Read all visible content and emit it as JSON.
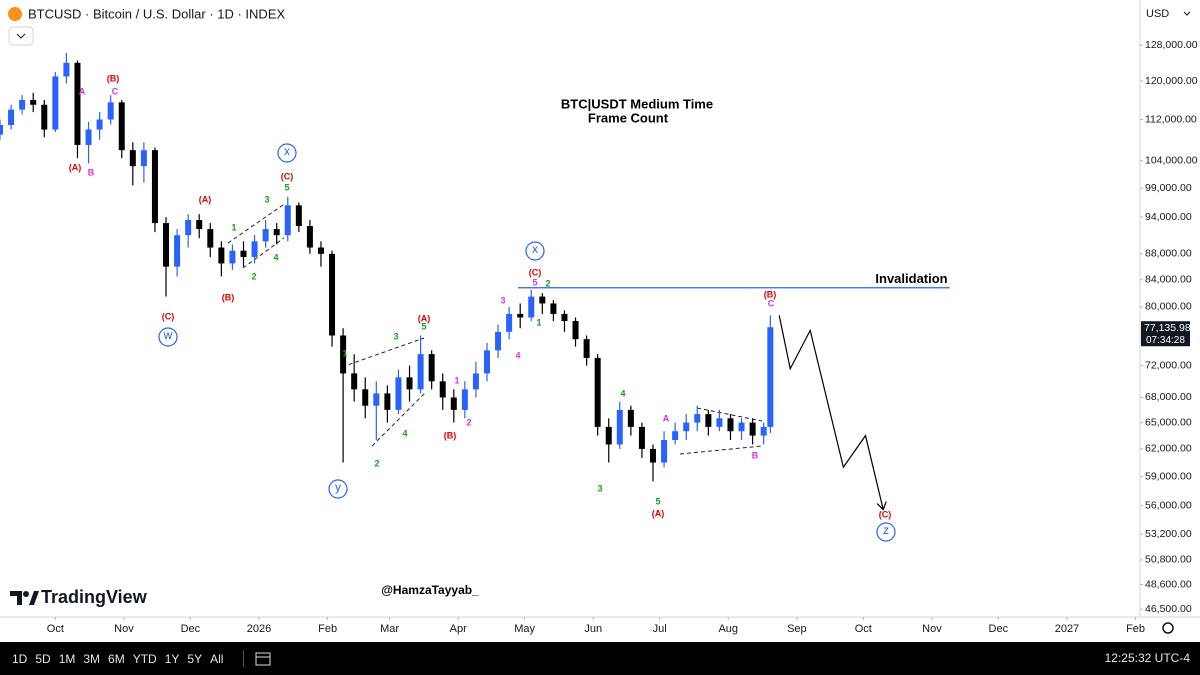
{
  "header": {
    "symbol": "BTCUSD · Bitcoin / U.S. Dollar · 1D · INDEX",
    "currency": "USD"
  },
  "branding": "TradingView",
  "toolbar": {
    "ranges": [
      "1D",
      "5D",
      "1M",
      "3M",
      "6M",
      "YTD",
      "1Y",
      "5Y",
      "All"
    ],
    "clock": "12:25:32 UTC-4"
  },
  "chart_data": {
    "type": "candlestick",
    "title": "BTC|USDT Medium Time",
    "subtitle": "Frame Count",
    "watermark": "@HamzaTayyab_",
    "log_scale": true,
    "grid": false,
    "up_color": "#2962ff",
    "down_color": "#000000",
    "x": [
      -25,
      -20,
      -15,
      -10,
      -5,
      0,
      5,
      10,
      15,
      20,
      25,
      30,
      35,
      40,
      45,
      50,
      55,
      60,
      65,
      70,
      75,
      80,
      85,
      90,
      95,
      100,
      105,
      110,
      115,
      120,
      125,
      130,
      135,
      140,
      145,
      150,
      155,
      160,
      165,
      170,
      175,
      180,
      185,
      190,
      195,
      200,
      205,
      210,
      215,
      220,
      225,
      230,
      235,
      240,
      245,
      250,
      255,
      260,
      265,
      270,
      275,
      280,
      285,
      290,
      295,
      300,
      305,
      310,
      315,
      320,
      323
    ],
    "open": [
      109000,
      110900,
      114000,
      116000,
      115000,
      110000,
      121000,
      124000,
      107000,
      110000,
      112000,
      115500,
      106000,
      103000,
      106000,
      93000,
      86000,
      91000,
      93500,
      92000,
      89000,
      86500,
      88500,
      87500,
      90000,
      92000,
      91000,
      96000,
      92500,
      89000,
      88000,
      76000,
      71000,
      69000,
      67000,
      68500,
      66500,
      70500,
      69000,
      73500,
      70000,
      68000,
      66500,
      69000,
      71000,
      74000,
      76500,
      79000,
      78500,
      81500,
      80500,
      79000,
      78000,
      75500,
      73000,
      64500,
      62500,
      66500,
      64500,
      62000,
      60500,
      63000,
      64000,
      65000,
      66000,
      64500,
      65500,
      64000,
      65000,
      63500,
      64500
    ],
    "high": [
      112000,
      115000,
      117000,
      117500,
      116000,
      122000,
      126200,
      124500,
      111500,
      113500,
      117000,
      116000,
      107500,
      107500,
      106500,
      94000,
      92000,
      94500,
      94500,
      93000,
      90000,
      89500,
      90000,
      91000,
      93500,
      93000,
      97500,
      96500,
      93500,
      90000,
      88500,
      77000,
      73500,
      70500,
      70000,
      69500,
      71500,
      72000,
      76000,
      74000,
      71000,
      69000,
      70000,
      72500,
      75000,
      77500,
      80000,
      80500,
      82500,
      82000,
      81000,
      79500,
      78500,
      76000,
      73500,
      65500,
      67500,
      67000,
      65000,
      62500,
      64000,
      65000,
      66000,
      67000,
      66500,
      66500,
      66000,
      65500,
      65500,
      65000,
      78800
    ],
    "low": [
      108000,
      110000,
      113000,
      113500,
      108500,
      109500,
      119500,
      104500,
      103500,
      108000,
      111000,
      104500,
      99500,
      100000,
      91500,
      81500,
      84500,
      89000,
      90500,
      87500,
      84500,
      85500,
      86000,
      86500,
      89000,
      89500,
      90000,
      91500,
      88000,
      86000,
      74500,
      60500,
      67500,
      65500,
      63000,
      65000,
      66000,
      67500,
      68500,
      69000,
      66500,
      65000,
      65500,
      68000,
      70000,
      73000,
      75500,
      77000,
      78000,
      79000,
      78000,
      76500,
      74500,
      72000,
      63500,
      60500,
      62000,
      63500,
      61000,
      58500,
      60000,
      62500,
      63000,
      64000,
      63500,
      64000,
      63000,
      63000,
      62500,
      62500,
      63800
    ],
    "close": [
      110900,
      114000,
      116000,
      115000,
      110000,
      121000,
      124000,
      107000,
      110000,
      112000,
      115500,
      106000,
      103000,
      106000,
      93000,
      86000,
      91000,
      93500,
      92000,
      89000,
      86500,
      88500,
      87500,
      90000,
      92000,
      91000,
      96000,
      92500,
      89000,
      88000,
      76000,
      71000,
      69000,
      67000,
      68500,
      66500,
      70500,
      69000,
      73500,
      70000,
      68000,
      66500,
      69000,
      71000,
      74000,
      76500,
      79000,
      78500,
      81500,
      80500,
      79000,
      78000,
      75500,
      73000,
      64500,
      62500,
      66500,
      64500,
      62000,
      60500,
      63000,
      64000,
      65000,
      66000,
      64500,
      65500,
      64000,
      65000,
      63500,
      64500,
      77135.98
    ],
    "xlim": [
      -25,
      490
    ],
    "xticks": [
      {
        "value": 0,
        "label": "Oct"
      },
      {
        "value": 31,
        "label": "Nov"
      },
      {
        "value": 61,
        "label": "Dec"
      },
      {
        "value": 92,
        "label": "2026"
      },
      {
        "value": 123,
        "label": "Feb"
      },
      {
        "value": 151,
        "label": "Mar"
      },
      {
        "value": 182,
        "label": "Apr"
      },
      {
        "value": 212,
        "label": "May"
      },
      {
        "value": 243,
        "label": "Jun"
      },
      {
        "value": 273,
        "label": "Jul"
      },
      {
        "value": 304,
        "label": "Aug"
      },
      {
        "value": 335,
        "label": "Sep"
      },
      {
        "value": 365,
        "label": "Oct"
      },
      {
        "value": 396,
        "label": "Nov"
      },
      {
        "value": 426,
        "label": "Dec"
      },
      {
        "value": 457,
        "label": "2027"
      },
      {
        "value": 488,
        "label": "Feb"
      }
    ],
    "ylim": [
      45850,
      138800
    ],
    "yticks": [
      {
        "value": 128000,
        "label": "128,000.00"
      },
      {
        "value": 120000,
        "label": "120,000.00"
      },
      {
        "value": 112000,
        "label": "112,000.00"
      },
      {
        "value": 104000,
        "label": "104,000.00"
      },
      {
        "value": 99000,
        "label": "99,000.00"
      },
      {
        "value": 94000,
        "label": "94,000.00"
      },
      {
        "value": 88000,
        "label": "88,000.00"
      },
      {
        "value": 84000,
        "label": "84,000.00"
      },
      {
        "value": 80000,
        "label": "80,000.00"
      },
      {
        "value": 72000,
        "label": "72,000.00"
      },
      {
        "value": 68000,
        "label": "68,000.00"
      },
      {
        "value": 65000,
        "label": "65,000.00"
      },
      {
        "value": 62000,
        "label": "62,000.00"
      },
      {
        "value": 59000,
        "label": "59,000.00"
      },
      {
        "value": 56000,
        "label": "56,000.00"
      },
      {
        "value": 53200,
        "label": "53,200.00"
      },
      {
        "value": 50800,
        "label": "50,800.00"
      },
      {
        "value": 48600,
        "label": "48,600.00"
      },
      {
        "value": 46500,
        "label": "46,500.00"
      }
    ],
    "last_price": {
      "value": 77135.98,
      "label": "77,135.98"
    },
    "countdown": "07:34:28",
    "invalidation": {
      "label": "Invalidation",
      "value": 82800,
      "x": [
        209,
        404
      ],
      "color": "#2962ff"
    },
    "projection": {
      "x": [
        327,
        332,
        341,
        356,
        366,
        374
      ],
      "values": [
        78800,
        71600,
        76700,
        60000,
        63500,
        55600
      ]
    },
    "annotations": [
      {
        "text": "(A)",
        "color": "#e00000"
      },
      {
        "text": "(B)",
        "color": "#e00000"
      },
      {
        "text": "(A)",
        "color": "#e00000"
      },
      {
        "text": "(C)",
        "color": "#e00000"
      },
      {
        "text": "(B)",
        "color": "#e00000"
      },
      {
        "text": "(C)",
        "color": "#e00000"
      },
      {
        "text": "(A)",
        "color": "#e00000"
      },
      {
        "text": "(B)",
        "color": "#e00000"
      },
      {
        "text": "(C)",
        "color": "#e00000"
      },
      {
        "text": "(B)",
        "color": "#e00000"
      },
      {
        "text": "(A)",
        "color": "#e00000"
      },
      {
        "text": "(C)",
        "color": "#e00000"
      },
      {
        "text": "A",
        "color": "#e030e0"
      },
      {
        "text": "C",
        "color": "#e030e0"
      },
      {
        "text": "B",
        "color": "#e030e0"
      },
      {
        "text": "1",
        "color": "#e030e0"
      },
      {
        "text": "2",
        "color": "#e030e0"
      },
      {
        "text": "3",
        "color": "#e030e0"
      },
      {
        "text": "4",
        "color": "#e030e0"
      },
      {
        "text": "A",
        "color": "#e030e0"
      },
      {
        "text": "B",
        "color": "#e030e0"
      },
      {
        "text": "C",
        "color": "#e030e0"
      },
      {
        "text": "5",
        "color": "#e030e0"
      },
      {
        "text": "5",
        "color": "#1a9e1a"
      },
      {
        "text": "3",
        "color": "#1a9e1a"
      },
      {
        "text": "1",
        "color": "#1a9e1a"
      },
      {
        "text": "4",
        "color": "#1a9e1a"
      },
      {
        "text": "2",
        "color": "#1a9e1a"
      },
      {
        "text": "1",
        "color": "#1a9e1a"
      },
      {
        "text": "3",
        "color": "#1a9e1a"
      },
      {
        "text": "5",
        "color": "#1a9e1a"
      },
      {
        "text": "4",
        "color": "#1a9e1a"
      },
      {
        "text": "2",
        "color": "#1a9e1a"
      },
      {
        "text": "1",
        "color": "#1a9e1a"
      },
      {
        "text": "2",
        "color": "#1a9e1a"
      },
      {
        "text": "4",
        "color": "#1a9e1a"
      },
      {
        "text": "3",
        "color": "#1a9e1a"
      },
      {
        "text": "5",
        "color": "#1a9e1a"
      },
      {
        "text": "x",
        "color": "#2962ff",
        "circled": true
      },
      {
        "text": "w",
        "color": "#2962ff",
        "circled": true
      },
      {
        "text": "y",
        "color": "#2962ff",
        "circled": true
      },
      {
        "text": "x",
        "color": "#2962ff",
        "circled": true
      },
      {
        "text": "z",
        "color": "#2962ff",
        "circled": true
      }
    ]
  }
}
